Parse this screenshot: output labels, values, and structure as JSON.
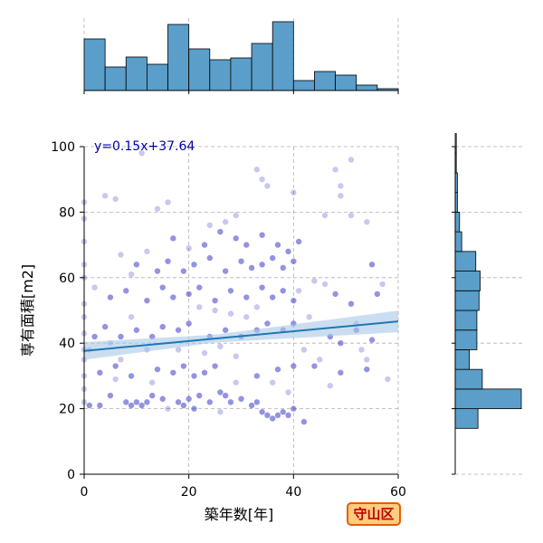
{
  "badge": "守山区",
  "chart_data": {
    "type": "scatter",
    "xlabel": "築年数[年]",
    "ylabel": "専有面積[m2]",
    "xlim": [
      0,
      60
    ],
    "ylim": [
      0,
      100
    ],
    "xticks": [
      0,
      20,
      40,
      60
    ],
    "yticks": [
      0,
      20,
      40,
      60,
      80,
      100
    ],
    "grid": true,
    "point_color": "#3a3ac8",
    "regression": {
      "slope": 0.15,
      "intercept": 37.64,
      "label": "y=0.15x+37.64",
      "color": "#1f77b4",
      "band_color": "#a8c8e8"
    },
    "clusters": [
      {
        "x": 1,
        "y": 21
      },
      {
        "x": 3,
        "y": 21
      },
      {
        "x": 5,
        "y": 24
      },
      {
        "x": 8,
        "y": 22
      },
      {
        "x": 9,
        "y": 21
      },
      {
        "x": 10,
        "y": 22
      },
      {
        "x": 11,
        "y": 21
      },
      {
        "x": 12,
        "y": 22
      },
      {
        "x": 13,
        "y": 24
      },
      {
        "x": 15,
        "y": 23
      },
      {
        "x": 18,
        "y": 22
      },
      {
        "x": 19,
        "y": 21
      },
      {
        "x": 20,
        "y": 23
      },
      {
        "x": 21,
        "y": 20
      },
      {
        "x": 22,
        "y": 24
      },
      {
        "x": 24,
        "y": 22
      },
      {
        "x": 26,
        "y": 25
      },
      {
        "x": 27,
        "y": 24
      },
      {
        "x": 28,
        "y": 22
      },
      {
        "x": 30,
        "y": 23
      },
      {
        "x": 32,
        "y": 21
      },
      {
        "x": 33,
        "y": 22
      },
      {
        "x": 34,
        "y": 19
      },
      {
        "x": 35,
        "y": 18
      },
      {
        "x": 36,
        "y": 17
      },
      {
        "x": 37,
        "y": 18
      },
      {
        "x": 38,
        "y": 19
      },
      {
        "x": 39,
        "y": 18
      },
      {
        "x": 40,
        "y": 20
      },
      {
        "x": 42,
        "y": 16
      },
      {
        "x": 3,
        "y": 31
      },
      {
        "x": 6,
        "y": 33
      },
      {
        "x": 9,
        "y": 30
      },
      {
        "x": 14,
        "y": 32
      },
      {
        "x": 17,
        "y": 31
      },
      {
        "x": 19,
        "y": 33
      },
      {
        "x": 21,
        "y": 30
      },
      {
        "x": 23,
        "y": 31
      },
      {
        "x": 25,
        "y": 33
      },
      {
        "x": 33,
        "y": 30
      },
      {
        "x": 37,
        "y": 32
      },
      {
        "x": 40,
        "y": 33
      },
      {
        "x": 44,
        "y": 33
      },
      {
        "x": 49,
        "y": 31
      },
      {
        "x": 54,
        "y": 32
      },
      {
        "x": 2,
        "y": 42
      },
      {
        "x": 4,
        "y": 45
      },
      {
        "x": 7,
        "y": 42
      },
      {
        "x": 10,
        "y": 44
      },
      {
        "x": 13,
        "y": 42
      },
      {
        "x": 15,
        "y": 45
      },
      {
        "x": 18,
        "y": 44
      },
      {
        "x": 20,
        "y": 46
      },
      {
        "x": 24,
        "y": 42
      },
      {
        "x": 27,
        "y": 44
      },
      {
        "x": 30,
        "y": 42
      },
      {
        "x": 33,
        "y": 44
      },
      {
        "x": 35,
        "y": 46
      },
      {
        "x": 38,
        "y": 44
      },
      {
        "x": 40,
        "y": 46
      },
      {
        "x": 47,
        "y": 42
      },
      {
        "x": 49,
        "y": 40
      },
      {
        "x": 52,
        "y": 44
      },
      {
        "x": 55,
        "y": 41
      },
      {
        "x": 5,
        "y": 54
      },
      {
        "x": 8,
        "y": 56
      },
      {
        "x": 12,
        "y": 53
      },
      {
        "x": 15,
        "y": 57
      },
      {
        "x": 17,
        "y": 54
      },
      {
        "x": 20,
        "y": 55
      },
      {
        "x": 22,
        "y": 57
      },
      {
        "x": 25,
        "y": 53
      },
      {
        "x": 28,
        "y": 56
      },
      {
        "x": 31,
        "y": 54
      },
      {
        "x": 34,
        "y": 57
      },
      {
        "x": 36,
        "y": 54
      },
      {
        "x": 38,
        "y": 56
      },
      {
        "x": 40,
        "y": 53
      },
      {
        "x": 48,
        "y": 55
      },
      {
        "x": 51,
        "y": 52
      },
      {
        "x": 56,
        "y": 55
      },
      {
        "x": 10,
        "y": 64
      },
      {
        "x": 14,
        "y": 62
      },
      {
        "x": 16,
        "y": 65
      },
      {
        "x": 19,
        "y": 62
      },
      {
        "x": 21,
        "y": 64
      },
      {
        "x": 24,
        "y": 66
      },
      {
        "x": 27,
        "y": 62
      },
      {
        "x": 30,
        "y": 65
      },
      {
        "x": 32,
        "y": 63
      },
      {
        "x": 34,
        "y": 64
      },
      {
        "x": 36,
        "y": 66
      },
      {
        "x": 38,
        "y": 63
      },
      {
        "x": 40,
        "y": 65
      },
      {
        "x": 55,
        "y": 64
      },
      {
        "x": 17,
        "y": 72
      },
      {
        "x": 23,
        "y": 70
      },
      {
        "x": 26,
        "y": 74
      },
      {
        "x": 29,
        "y": 72
      },
      {
        "x": 31,
        "y": 70
      },
      {
        "x": 34,
        "y": 73
      },
      {
        "x": 37,
        "y": 70
      },
      {
        "x": 39,
        "y": 68
      },
      {
        "x": 41,
        "y": 71
      }
    ],
    "points": [
      {
        "x": 0,
        "y": 83
      },
      {
        "x": 0,
        "y": 78
      },
      {
        "x": 0,
        "y": 71
      },
      {
        "x": 0,
        "y": 64
      },
      {
        "x": 0,
        "y": 60
      },
      {
        "x": 0,
        "y": 52
      },
      {
        "x": 0,
        "y": 48
      },
      {
        "x": 0,
        "y": 43
      },
      {
        "x": 0,
        "y": 38
      },
      {
        "x": 0,
        "y": 35
      },
      {
        "x": 0,
        "y": 30
      },
      {
        "x": 0,
        "y": 26
      },
      {
        "x": 0,
        "y": 22
      },
      {
        "x": 4,
        "y": 85
      },
      {
        "x": 6,
        "y": 84
      },
      {
        "x": 11,
        "y": 98
      },
      {
        "x": 14,
        "y": 81
      },
      {
        "x": 16,
        "y": 83
      },
      {
        "x": 24,
        "y": 76
      },
      {
        "x": 27,
        "y": 77
      },
      {
        "x": 29,
        "y": 79
      },
      {
        "x": 33,
        "y": 93
      },
      {
        "x": 34,
        "y": 90
      },
      {
        "x": 35,
        "y": 88
      },
      {
        "x": 40,
        "y": 86
      },
      {
        "x": 46,
        "y": 79
      },
      {
        "x": 48,
        "y": 93
      },
      {
        "x": 49,
        "y": 88
      },
      {
        "x": 49,
        "y": 85
      },
      {
        "x": 51,
        "y": 79
      },
      {
        "x": 51,
        "y": 96
      },
      {
        "x": 54,
        "y": 77
      },
      {
        "x": 57,
        "y": 58
      },
      {
        "x": 58,
        "y": 29
      },
      {
        "x": 54,
        "y": 35
      },
      {
        "x": 45,
        "y": 35
      },
      {
        "x": 43,
        "y": 48
      },
      {
        "x": 46,
        "y": 58
      },
      {
        "x": 2,
        "y": 57
      },
      {
        "x": 1,
        "y": 38
      },
      {
        "x": 5,
        "y": 40
      },
      {
        "x": 7,
        "y": 35
      },
      {
        "x": 9,
        "y": 48
      },
      {
        "x": 12,
        "y": 38
      },
      {
        "x": 18,
        "y": 38
      },
      {
        "x": 23,
        "y": 37
      },
      {
        "x": 26,
        "y": 39
      },
      {
        "x": 29,
        "y": 36
      },
      {
        "x": 31,
        "y": 48
      },
      {
        "x": 42,
        "y": 38
      },
      {
        "x": 7,
        "y": 67
      },
      {
        "x": 9,
        "y": 61
      },
      {
        "x": 12,
        "y": 68
      },
      {
        "x": 20,
        "y": 69
      },
      {
        "x": 22,
        "y": 51
      },
      {
        "x": 25,
        "y": 50
      },
      {
        "x": 28,
        "y": 49
      },
      {
        "x": 33,
        "y": 51
      },
      {
        "x": 41,
        "y": 56
      },
      {
        "x": 44,
        "y": 59
      },
      {
        "x": 52,
        "y": 46
      },
      {
        "x": 53,
        "y": 38
      },
      {
        "x": 47,
        "y": 27
      },
      {
        "x": 26,
        "y": 19
      },
      {
        "x": 16,
        "y": 20
      },
      {
        "x": 6,
        "y": 29
      },
      {
        "x": 13,
        "y": 28
      },
      {
        "x": 29,
        "y": 28
      },
      {
        "x": 36,
        "y": 28
      },
      {
        "x": 39,
        "y": 25
      }
    ],
    "top_histogram": {
      "bin_edges": [
        0,
        4,
        8,
        12,
        16,
        20,
        24,
        28,
        32,
        36,
        40,
        44,
        48,
        52,
        56,
        60
      ],
      "counts": [
        57,
        26,
        37,
        29,
        73,
        46,
        34,
        36,
        52,
        76,
        11,
        21,
        17,
        6,
        2
      ]
    },
    "right_histogram": {
      "bin_edges": [
        14,
        20,
        26,
        32,
        38,
        44,
        50,
        56,
        62,
        68,
        74,
        80,
        86,
        92,
        98,
        104
      ],
      "counts": [
        21,
        61,
        25,
        13,
        20,
        20,
        22,
        23,
        19,
        6,
        4,
        2,
        2,
        1,
        1
      ]
    }
  }
}
